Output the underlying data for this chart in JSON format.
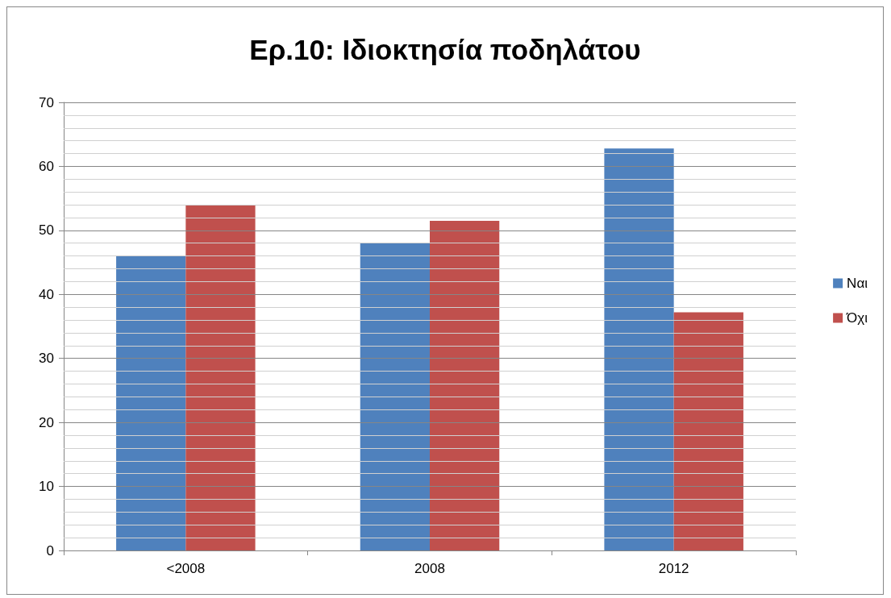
{
  "chart_data": {
    "type": "bar",
    "title": "Ερ.10: Ιδιοκτησία ποδηλάτου",
    "categories": [
      "<2008",
      "2008",
      "2012"
    ],
    "series": [
      {
        "name": "Ναι",
        "color": "#4f81bd",
        "values": [
          46,
          48,
          62.8
        ]
      },
      {
        "name": "Όχι",
        "color": "#c0504d",
        "values": [
          54,
          51.5,
          37.2
        ]
      }
    ],
    "ylim": [
      0,
      70
    ],
    "yticks": [
      0,
      {
        "value": 2,
        "label": null
      },
      {
        "value": 4,
        "label": null
      },
      {
        "value": 6,
        "label": null
      },
      {
        "value": 8,
        "label": null
      },
      10,
      {
        "value": 12,
        "label": null
      },
      {
        "value": 14,
        "label": null
      },
      {
        "value": 16,
        "label": null
      },
      {
        "value": 18,
        "label": null
      },
      20,
      {
        "value": 22,
        "label": null
      },
      {
        "value": 24,
        "label": null
      },
      {
        "value": 26,
        "label": null
      },
      {
        "value": 28,
        "label": null
      },
      30,
      {
        "value": 32,
        "label": null
      },
      {
        "value": 34,
        "label": null
      },
      {
        "value": 36,
        "label": null
      },
      {
        "value": 38,
        "label": null
      },
      40,
      {
        "value": 42,
        "label": null
      },
      {
        "value": 44,
        "label": null
      },
      {
        "value": 46,
        "label": null
      },
      {
        "value": 48,
        "label": null
      },
      50,
      {
        "value": 52,
        "label": null
      },
      {
        "value": 54,
        "label": null
      },
      {
        "value": 56,
        "label": null
      },
      {
        "value": 58,
        "label": null
      },
      60,
      {
        "value": 62,
        "label": null
      },
      {
        "value": 64,
        "label": null
      },
      {
        "value": 66,
        "label": null
      },
      {
        "value": 68,
        "label": null
      },
      70
    ],
    "grid": "y",
    "legend": "right"
  }
}
